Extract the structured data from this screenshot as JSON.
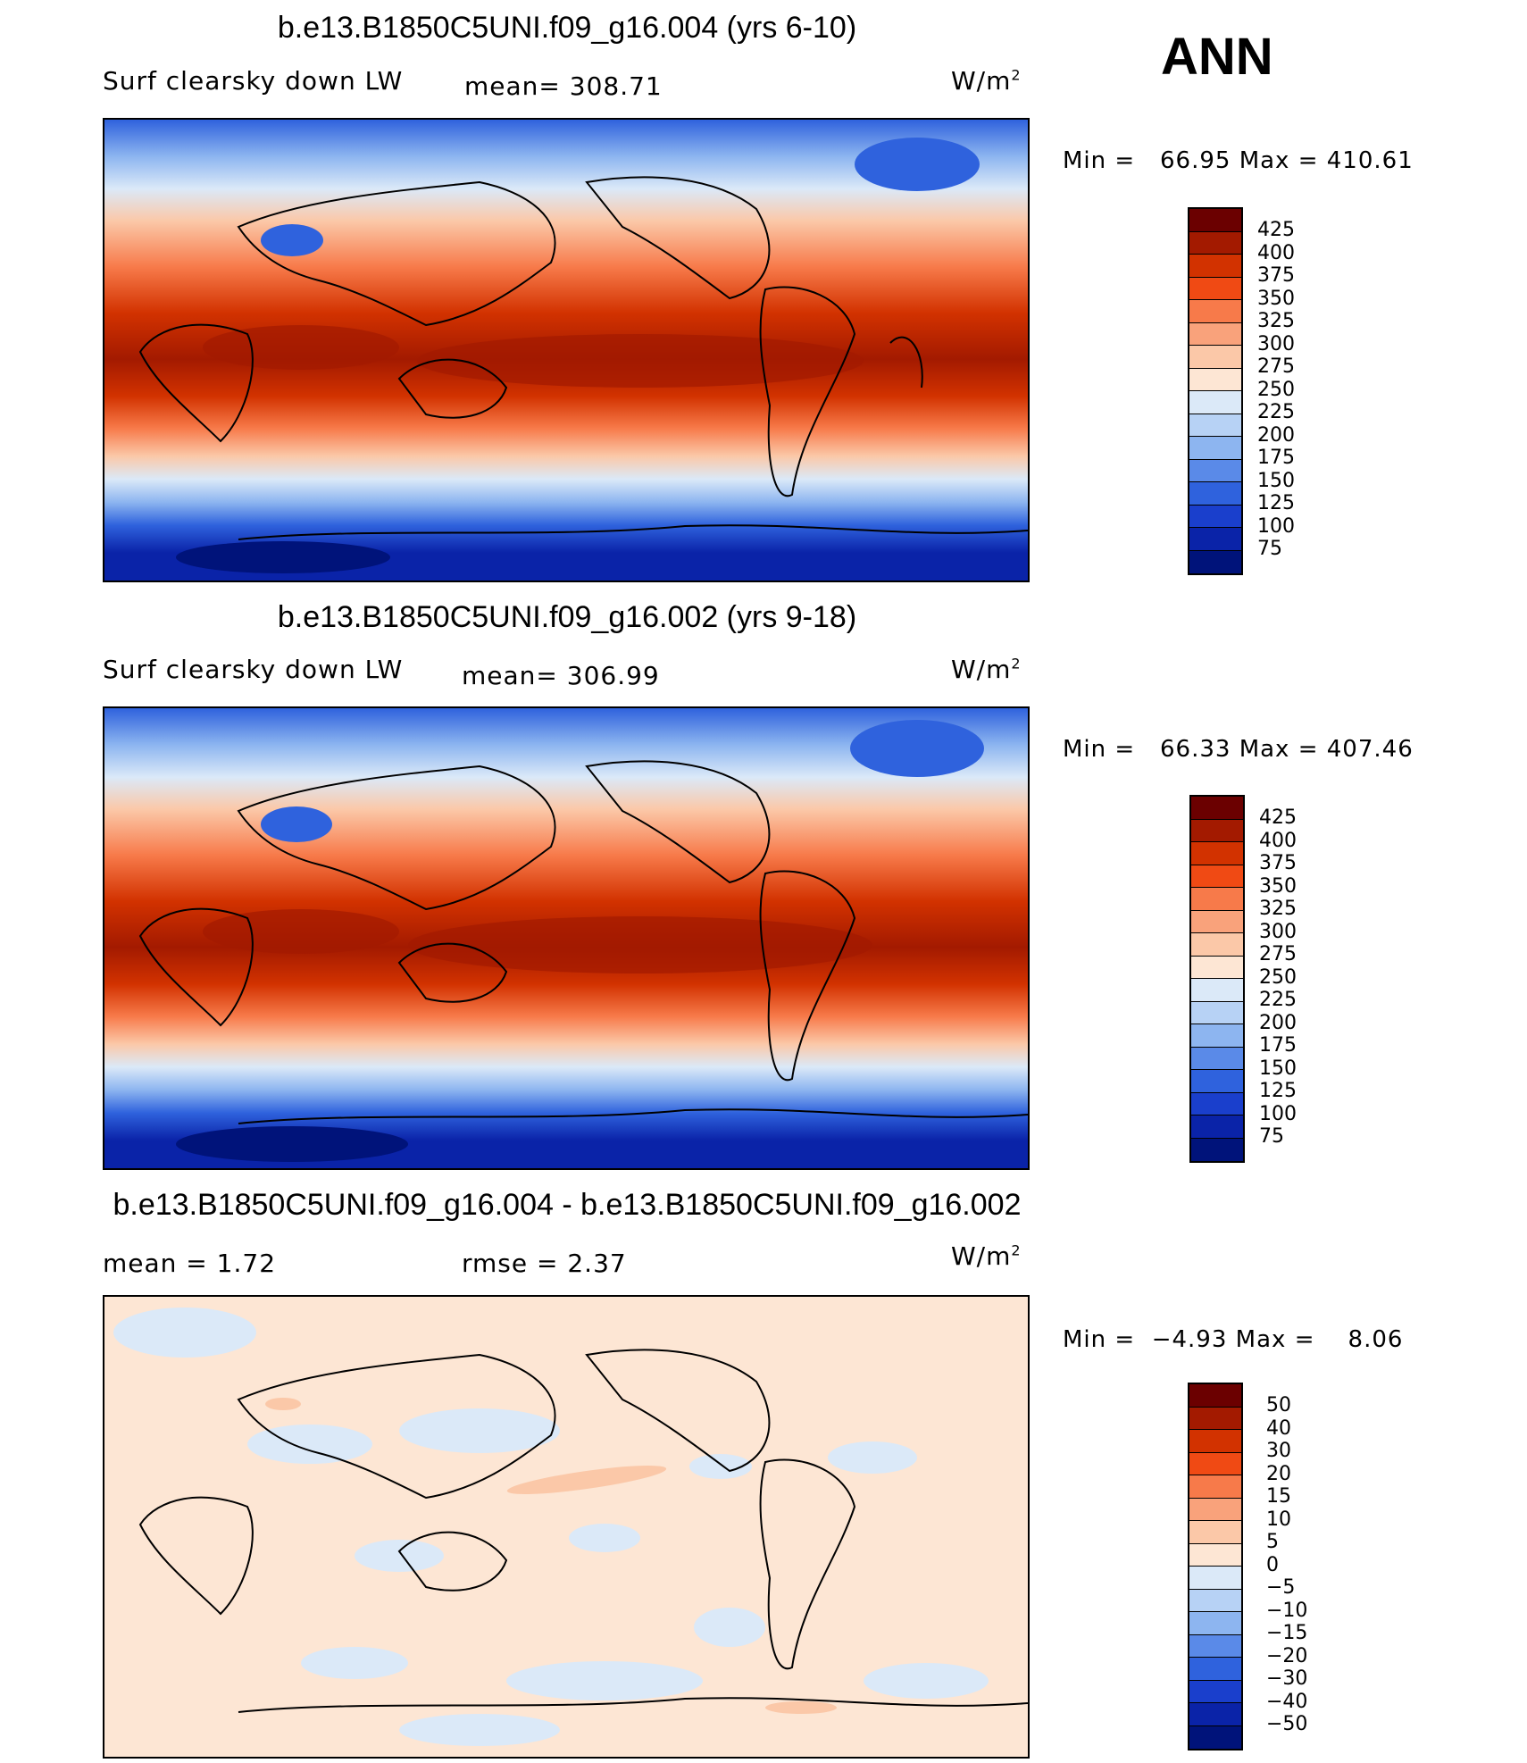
{
  "season": "ANN",
  "panels": [
    {
      "title": "b.e13.B1850C5UNI.f09_g16.004 (yrs 6-10)",
      "left_label": "Surf clearsky down LW",
      "stat_text": "mean= 308.71",
      "units": "W/m",
      "units_sup": "2",
      "min_label": "Min =",
      "min_value": "66.95",
      "max_label": "Max =",
      "max_value": "410.61",
      "colorbar_labels": [
        "425",
        "400",
        "375",
        "350",
        "325",
        "300",
        "275",
        "250",
        "225",
        "200",
        "175",
        "150",
        "125",
        "100",
        "75"
      ]
    },
    {
      "title": "b.e13.B1850C5UNI.f09_g16.002 (yrs 9-18)",
      "left_label": "Surf clearsky down LW",
      "stat_text": "mean= 306.99",
      "units": "W/m",
      "units_sup": "2",
      "min_label": "Min =",
      "min_value": "66.33",
      "max_label": "Max =",
      "max_value": "407.46",
      "colorbar_labels": [
        "425",
        "400",
        "375",
        "350",
        "325",
        "300",
        "275",
        "250",
        "225",
        "200",
        "175",
        "150",
        "125",
        "100",
        "75"
      ]
    },
    {
      "title": "b.e13.B1850C5UNI.f09_g16.004 - b.e13.B1850C5UNI.f09_g16.002",
      "left_label": "mean =    1.72",
      "stat_text": "rmse =    2.37",
      "units": "W/m",
      "units_sup": "2",
      "min_label": "Min =",
      "min_value": "−4.93",
      "max_label": "Max =",
      "max_value": "8.06",
      "colorbar_labels": [
        "50",
        "40",
        "30",
        "20",
        "15",
        "10",
        "5",
        "0",
        "−5",
        "−10",
        "−15",
        "−20",
        "−30",
        "−40",
        "−50"
      ]
    }
  ],
  "colors": {
    "abs_scale": [
      "#6b0000",
      "#a31a00",
      "#d23200",
      "#f04a14",
      "#f77a4a",
      "#f9a27b",
      "#fbc8a8",
      "#fde6d4",
      "#dbe9f8",
      "#b7d2f5",
      "#8db5f0",
      "#5a8ae8",
      "#2f62dd",
      "#1a3fcc",
      "#0a23a8",
      "#00137a"
    ],
    "diff_scale": [
      "#6b0000",
      "#a31a00",
      "#d23200",
      "#f04a14",
      "#f77a4a",
      "#f9a27b",
      "#fbc8a8",
      "#fde6d4",
      "#dbe9f8",
      "#b7d2f5",
      "#8db5f0",
      "#5a8ae8",
      "#2f62dd",
      "#1a3fcc",
      "#0a23a8",
      "#00137a"
    ]
  }
}
